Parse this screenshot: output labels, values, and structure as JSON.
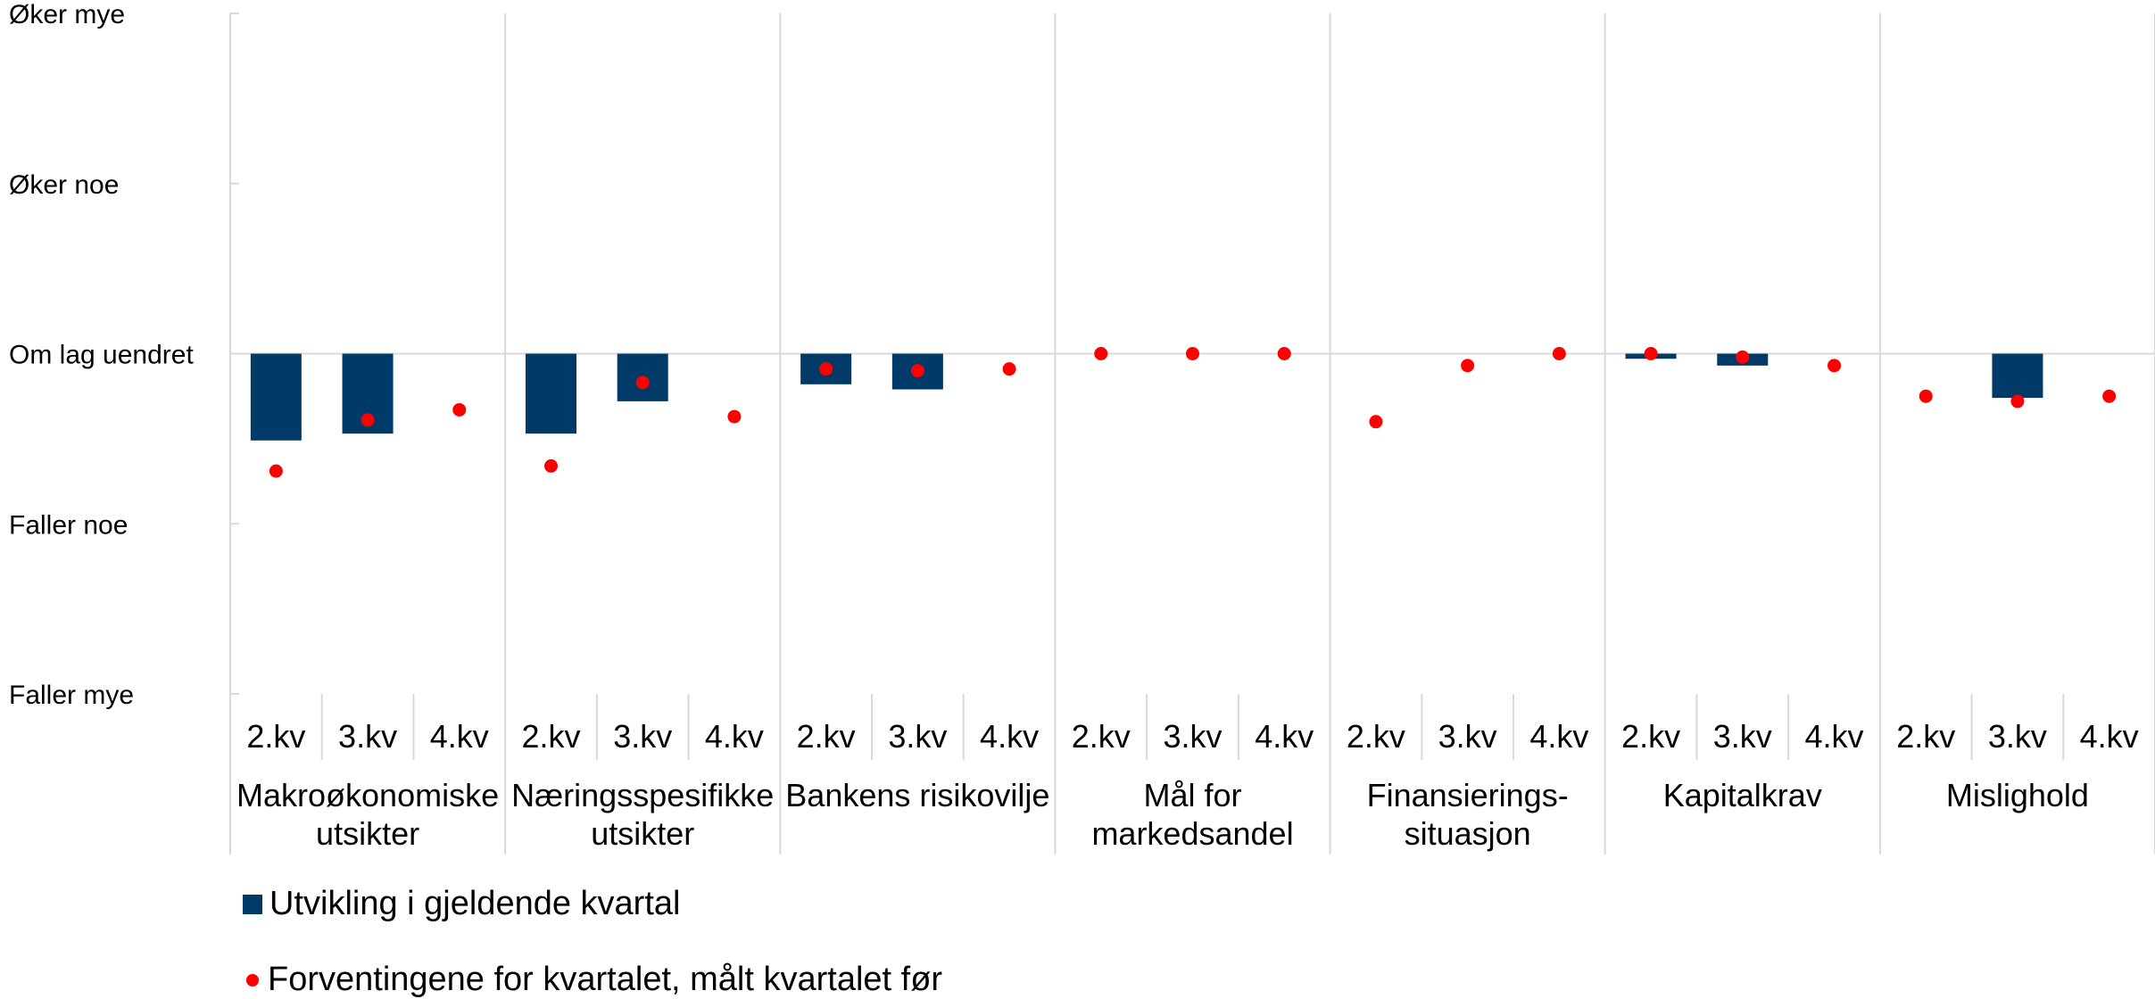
{
  "chart_data": {
    "type": "bar",
    "y_tick_labels": [
      "Øker mye",
      "Øker noe",
      "Om lag uendret",
      "Faller noe",
      "Faller mye"
    ],
    "ylim": [
      -2,
      2
    ],
    "groups": [
      {
        "label_lines": [
          "Makroøkonomiske",
          "utsikter"
        ],
        "quarters": [
          "2.kv",
          "3.kv",
          "4.kv"
        ],
        "bar": [
          -0.51,
          -0.47,
          null
        ],
        "dot": [
          -0.69,
          -0.39,
          -0.33
        ]
      },
      {
        "label_lines": [
          "Næringsspesifikke",
          "utsikter"
        ],
        "quarters": [
          "2.kv",
          "3.kv",
          "4.kv"
        ],
        "bar": [
          -0.47,
          -0.28,
          null
        ],
        "dot": [
          -0.66,
          -0.17,
          -0.37
        ]
      },
      {
        "label_lines": [
          "Bankens risikovilje"
        ],
        "quarters": [
          "2.kv",
          "3.kv",
          "4.kv"
        ],
        "bar": [
          -0.18,
          -0.21,
          null
        ],
        "dot": [
          -0.09,
          -0.1,
          -0.09
        ]
      },
      {
        "label_lines": [
          "Mål for",
          "markedsandel"
        ],
        "quarters": [
          "2.kv",
          "3.kv",
          "4.kv"
        ],
        "bar": [
          null,
          null,
          null
        ],
        "dot": [
          0.0,
          0.0,
          0.0
        ]
      },
      {
        "label_lines": [
          "Finansierings-",
          "situasjon"
        ],
        "quarters": [
          "2.kv",
          "3.kv",
          "4.kv"
        ],
        "bar": [
          null,
          null,
          null
        ],
        "dot": [
          -0.4,
          -0.07,
          0.0
        ]
      },
      {
        "label_lines": [
          "Kapitalkrav"
        ],
        "quarters": [
          "2.kv",
          "3.kv",
          "4.kv"
        ],
        "bar": [
          -0.03,
          -0.07,
          null
        ],
        "dot": [
          0.0,
          -0.02,
          -0.07
        ]
      },
      {
        "label_lines": [
          "Mislighold"
        ],
        "quarters": [
          "2.kv",
          "3.kv",
          "4.kv"
        ],
        "bar": [
          null,
          -0.26,
          null
        ],
        "dot": [
          -0.25,
          -0.28,
          -0.25
        ]
      }
    ],
    "series": [
      {
        "name": "Utvikling i gjeldende kvartal",
        "kind": "bar",
        "color": "#003a68"
      },
      {
        "name": "Forventingene for kvartalet, målt kvartalet før",
        "kind": "dot",
        "color": "#ff0000"
      }
    ],
    "legend_position": "bottom-left"
  }
}
